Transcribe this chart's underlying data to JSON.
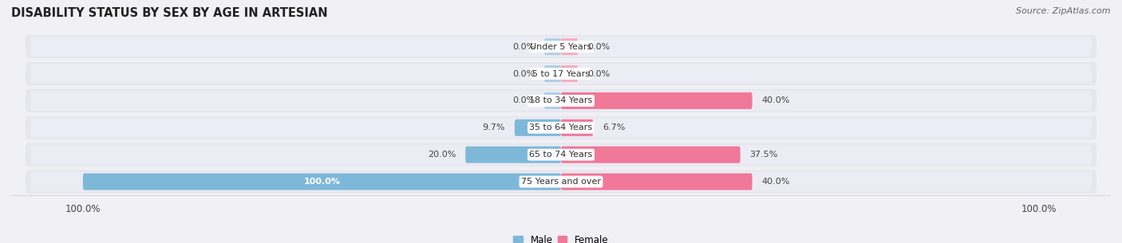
{
  "title": "DISABILITY STATUS BY SEX BY AGE IN ARTESIAN",
  "source": "Source: ZipAtlas.com",
  "categories": [
    "Under 5 Years",
    "5 to 17 Years",
    "18 to 34 Years",
    "35 to 64 Years",
    "65 to 74 Years",
    "75 Years and over"
  ],
  "male_values": [
    0.0,
    0.0,
    0.0,
    9.7,
    20.0,
    100.0
  ],
  "female_values": [
    0.0,
    0.0,
    40.0,
    6.7,
    37.5,
    40.0
  ],
  "male_color": "#7eb8d9",
  "female_color": "#f07898",
  "male_stub_color": "#b0cfe8",
  "female_stub_color": "#f4afc0",
  "row_bg_color": "#e6e6ef",
  "max_value": 100.0,
  "title_fontsize": 10.5,
  "source_fontsize": 8,
  "tick_fontsize": 8.5,
  "label_fontsize": 8,
  "value_fontsize": 8
}
